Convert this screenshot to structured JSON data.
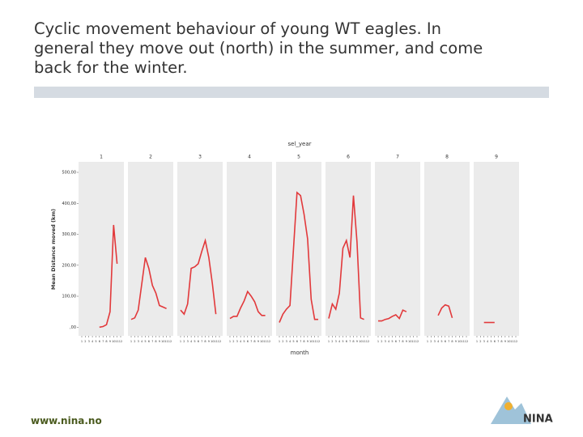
{
  "slide": {
    "title_lines": [
      "Cyclic movement behaviour of young WT eagles. In",
      "general they move out (north) in the summer, and come",
      "back for the winter."
    ],
    "footer": "www.nina.no",
    "logo": "NINA"
  },
  "chart_data": {
    "type": "line",
    "facet_label": "sel_year",
    "x_label": "month",
    "y_label": "Mean Distance moved (km)",
    "x": [
      1,
      2,
      3,
      4,
      5,
      6,
      7,
      8,
      9,
      10,
      11,
      12
    ],
    "xlim": [
      1,
      12
    ],
    "xticks": [
      1,
      2,
      3,
      4,
      5,
      6,
      7,
      8,
      9,
      10,
      11,
      12
    ],
    "ylim": [
      -28,
      534
    ],
    "yticks": [
      {
        "value": 0,
        "label": ",00"
      },
      {
        "value": 100,
        "label": "100,00"
      },
      {
        "value": 200,
        "label": "200,00"
      },
      {
        "value": 300,
        "label": "300,00"
      },
      {
        "value": 400,
        "label": "400,00"
      },
      {
        "value": 500,
        "label": "500,00"
      }
    ],
    "color": "#e2393b",
    "series": [
      {
        "name": "1",
        "values": [
          null,
          null,
          null,
          null,
          null,
          0,
          2,
          8,
          50,
          330,
          205,
          null
        ]
      },
      {
        "name": "2",
        "values": [
          25,
          30,
          55,
          140,
          225,
          190,
          135,
          110,
          70,
          65,
          60,
          null
        ]
      },
      {
        "name": "3",
        "values": [
          55,
          42,
          75,
          190,
          195,
          205,
          245,
          280,
          225,
          140,
          42,
          null
        ]
      },
      {
        "name": "4",
        "values": [
          28,
          35,
          35,
          62,
          85,
          115,
          100,
          82,
          50,
          38,
          38,
          null
        ]
      },
      {
        "name": "5",
        "values": [
          15,
          42,
          58,
          70,
          255,
          435,
          425,
          365,
          285,
          90,
          25,
          25
        ]
      },
      {
        "name": "6",
        "values": [
          28,
          75,
          58,
          110,
          255,
          280,
          225,
          425,
          275,
          30,
          25,
          null
        ]
      },
      {
        "name": "7",
        "values": [
          20,
          20,
          25,
          28,
          35,
          40,
          28,
          55,
          50,
          null,
          null,
          null
        ]
      },
      {
        "name": "8",
        "values": [
          null,
          null,
          null,
          38,
          62,
          72,
          68,
          30,
          null,
          null,
          null,
          null
        ]
      },
      {
        "name": "9",
        "values": [
          null,
          null,
          15,
          15,
          15,
          15,
          null,
          null,
          null,
          null,
          null,
          null
        ]
      }
    ]
  }
}
